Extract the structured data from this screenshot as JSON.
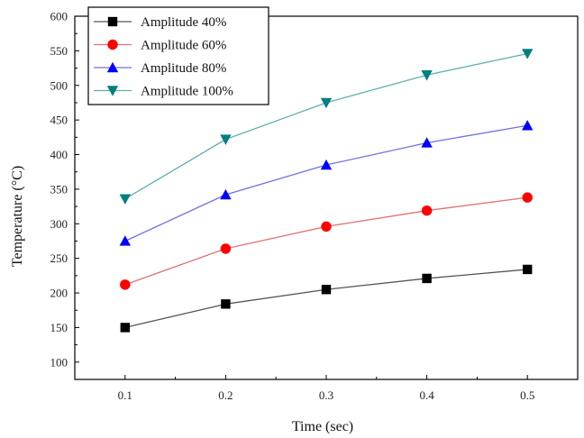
{
  "chart_data": {
    "type": "line",
    "xlabel": "Time (sec)",
    "ylabel": "Temperature (°C)",
    "xlim": [
      0.05,
      0.55
    ],
    "ylim": [
      75,
      600
    ],
    "x_ticks": [
      "0.1",
      "0.2",
      "0.3",
      "0.4",
      "0.5"
    ],
    "y_ticks": [
      "100",
      "150",
      "200",
      "250",
      "300",
      "350",
      "400",
      "450",
      "500",
      "550",
      "600"
    ],
    "x": [
      0.1,
      0.2,
      0.3,
      0.4,
      0.5
    ],
    "legend_position": "top-left",
    "grid": false,
    "series": [
      {
        "name": "Amplitude 40%",
        "values": [
          150,
          184,
          205,
          221,
          234
        ],
        "color": "#000000",
        "line_color": "#555555",
        "marker": "square"
      },
      {
        "name": "Amplitude 60%",
        "values": [
          212,
          264,
          296,
          319,
          338
        ],
        "color": "#ff0000",
        "line_color": "#e07070",
        "marker": "circle"
      },
      {
        "name": "Amplitude 80%",
        "values": [
          275,
          342,
          385,
          417,
          442
        ],
        "color": "#0000ff",
        "line_color": "#7070e0",
        "marker": "triangle-up"
      },
      {
        "name": "Amplitude 100%",
        "values": [
          336,
          422,
          475,
          515,
          546
        ],
        "color": "#008080",
        "line_color": "#60b0b0",
        "marker": "triangle-down"
      }
    ]
  }
}
